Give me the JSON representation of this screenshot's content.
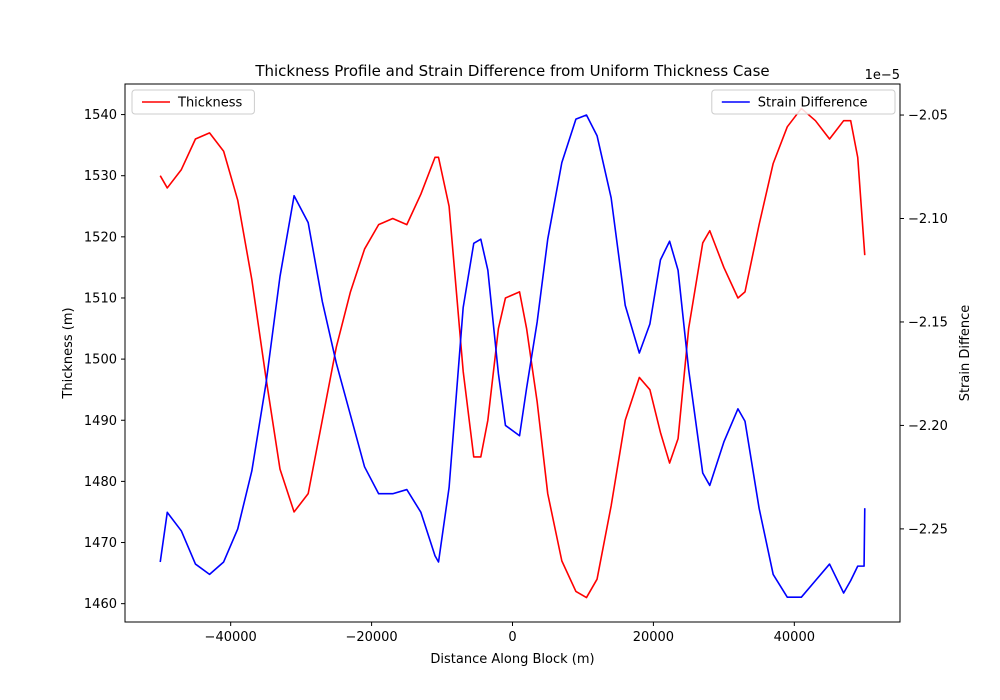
{
  "chart_data": {
    "type": "line",
    "title": "Thickness Profile and Strain Difference from Uniform Thickness Case",
    "xlabel": "Distance Along Block (m)",
    "ylabel_left": "Thickness (m)",
    "ylabel_right": "Strain Diffence",
    "right_axis_multiplier": "1e−5",
    "xlim": [
      -55000,
      55000
    ],
    "ylim_left": [
      1457,
      1545
    ],
    "ylim_right": [
      -2.295,
      -2.035
    ],
    "x_ticks": [
      -40000,
      -20000,
      0,
      20000,
      40000
    ],
    "x_tick_labels": [
      "−40000",
      "−20000",
      "0",
      "20000",
      "40000"
    ],
    "y_left_ticks": [
      1460,
      1470,
      1480,
      1490,
      1500,
      1510,
      1520,
      1530,
      1540
    ],
    "y_left_tick_labels": [
      "1460",
      "1470",
      "1480",
      "1490",
      "1500",
      "1510",
      "1520",
      "1530",
      "1540"
    ],
    "y_right_ticks": [
      -2.25,
      -2.2,
      -2.15,
      -2.1,
      -2.05
    ],
    "y_right_tick_labels": [
      "−2.25",
      "−2.20",
      "−2.15",
      "−2.10",
      "−2.05"
    ],
    "grid": false,
    "series": [
      {
        "name": "Thickness",
        "axis": "left",
        "color": "#ff0000",
        "legend_position": "top-left",
        "x": [
          -50000,
          -49000,
          -47000,
          -45000,
          -43000,
          -41000,
          -39000,
          -37000,
          -35000,
          -33000,
          -31000,
          -29000,
          -27000,
          -25000,
          -23000,
          -21000,
          -19000,
          -17000,
          -15000,
          -13000,
          -11000,
          -10500,
          -9000,
          -7000,
          -5500,
          -4500,
          -3500,
          -2000,
          -1000,
          1000,
          2000,
          3500,
          5000,
          7000,
          9000,
          10500,
          12000,
          14000,
          16000,
          18000,
          19500,
          21000,
          22300,
          23500,
          25000,
          27000,
          28000,
          30000,
          32000,
          33000,
          35000,
          37000,
          39000,
          41000,
          43000,
          45000,
          47000,
          48000,
          49000,
          50000
        ],
        "y": [
          1530,
          1528,
          1531,
          1536,
          1537,
          1534,
          1526,
          1513,
          1497,
          1482,
          1475,
          1478,
          1490,
          1502,
          1511,
          1518,
          1522,
          1523,
          1522,
          1527,
          1533,
          1533,
          1525,
          1498,
          1484,
          1484,
          1490,
          1505,
          1510,
          1511,
          1505,
          1493,
          1478,
          1467,
          1462,
          1461,
          1464,
          1476,
          1490,
          1497,
          1495,
          1488,
          1483,
          1487,
          1505,
          1519,
          1521,
          1515,
          1510,
          1511,
          1522,
          1532,
          1538,
          1541,
          1539,
          1536,
          1539,
          1539,
          1533,
          1517
        ]
      },
      {
        "name": "Strain Difference",
        "axis": "right",
        "color": "#0000ff",
        "legend_position": "top-right",
        "x": [
          -50000,
          -49000,
          -47000,
          -45000,
          -43000,
          -41000,
          -39000,
          -37000,
          -35000,
          -33000,
          -31000,
          -29000,
          -27000,
          -25000,
          -23000,
          -21000,
          -19000,
          -17000,
          -15000,
          -13000,
          -11000,
          -10500,
          -9000,
          -7000,
          -5500,
          -4500,
          -3500,
          -2000,
          -1000,
          1000,
          2000,
          3500,
          5000,
          7000,
          9000,
          10500,
          12000,
          14000,
          16000,
          18000,
          19500,
          21000,
          22300,
          23500,
          25000,
          27000,
          28000,
          30000,
          32000,
          33000,
          35000,
          37000,
          39000,
          41000,
          43000,
          45000,
          47000,
          48000,
          49000,
          49900,
          50000
        ],
        "y": [
          -2.266,
          -2.242,
          -2.251,
          -2.267,
          -2.272,
          -2.266,
          -2.25,
          -2.222,
          -2.18,
          -2.128,
          -2.089,
          -2.102,
          -2.14,
          -2.17,
          -2.195,
          -2.22,
          -2.233,
          -2.233,
          -2.231,
          -2.242,
          -2.263,
          -2.266,
          -2.23,
          -2.143,
          -2.112,
          -2.11,
          -2.125,
          -2.175,
          -2.2,
          -2.205,
          -2.182,
          -2.15,
          -2.11,
          -2.073,
          -2.052,
          -2.05,
          -2.06,
          -2.09,
          -2.142,
          -2.165,
          -2.151,
          -2.12,
          -2.111,
          -2.125,
          -2.173,
          -2.223,
          -2.229,
          -2.208,
          -2.192,
          -2.198,
          -2.24,
          -2.272,
          -2.283,
          -2.283,
          -2.275,
          -2.267,
          -2.281,
          -2.275,
          -2.268,
          -2.268,
          -2.24
        ]
      }
    ]
  }
}
